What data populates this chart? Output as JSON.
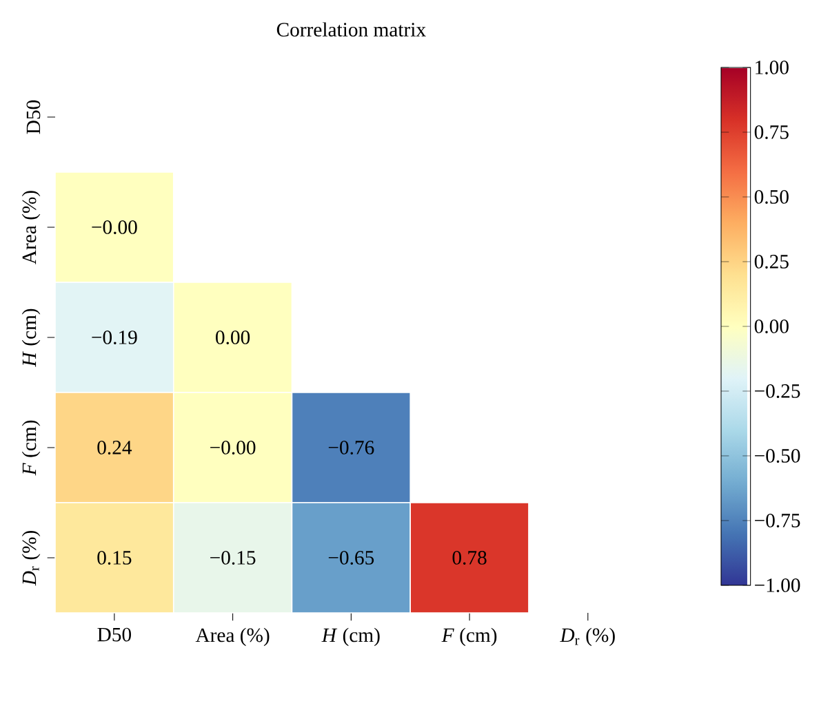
{
  "chart_data": {
    "type": "heatmap",
    "title": "Correlation matrix",
    "categories": [
      "D50",
      "Area (%)",
      "*H* (cm)",
      "*F* (cm)",
      "*D*$_{r}$ (%)"
    ],
    "y_categories": [
      "D50",
      "Area (%)",
      "*H* (cm)",
      "*F* (cm)",
      "*D*$_{r}$ (%)"
    ],
    "cells": [
      [
        null,
        null,
        null,
        null,
        null
      ],
      [
        -0.0,
        null,
        null,
        null,
        null
      ],
      [
        -0.19,
        0.0,
        null,
        null,
        null
      ],
      [
        0.24,
        -0.0,
        -0.76,
        null,
        null
      ],
      [
        0.15,
        -0.15,
        -0.65,
        0.78,
        null
      ]
    ],
    "cell_labels": [
      [
        null,
        null,
        null,
        null,
        null
      ],
      [
        "−0.00",
        null,
        null,
        null,
        null
      ],
      [
        "−0.19",
        "0.00",
        null,
        null,
        null
      ],
      [
        "0.24",
        "−0.00",
        "−0.76",
        null,
        null
      ],
      [
        "0.15",
        "−0.15",
        "−0.65",
        "0.78",
        null
      ]
    ],
    "clim": [
      -1,
      1
    ],
    "cticks": [
      {
        "value": -1,
        "label": "−1.00"
      },
      {
        "value": -0.75,
        "label": "−0.75"
      },
      {
        "value": -0.5,
        "label": "−0.50"
      },
      {
        "value": -0.25,
        "label": "−0.25"
      },
      {
        "value": 0,
        "label": "0.00"
      },
      {
        "value": 0.25,
        "label": "0.25"
      },
      {
        "value": 0.5,
        "label": "0.50"
      },
      {
        "value": 0.75,
        "label": "0.75"
      },
      {
        "value": 1,
        "label": "1.00"
      }
    ]
  }
}
